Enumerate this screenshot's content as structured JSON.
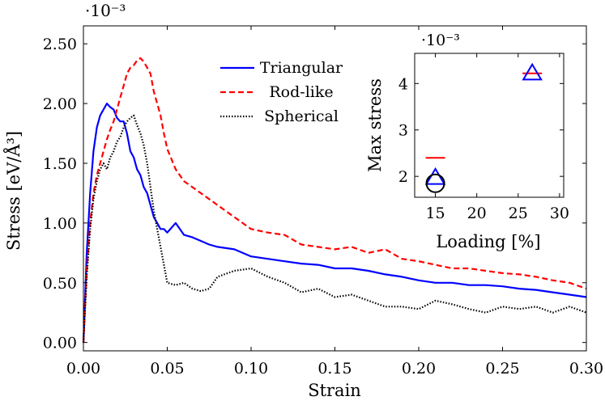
{
  "chart_data": [
    {
      "type": "line",
      "xlabel": "Strain",
      "ylabel": "Stress [eV/Å³]",
      "y_scale_label": "·10⁻³",
      "xlim": [
        0,
        0.3
      ],
      "ylim": [
        -0.07,
        2.65
      ],
      "x_ticks": [
        "0.00",
        "0.05",
        "0.10",
        "0.15",
        "0.20",
        "0.25",
        "0.30"
      ],
      "y_ticks": [
        "0.00",
        "0.50",
        "1.00",
        "1.50",
        "2.00",
        "2.50"
      ],
      "legend_position": "top-center",
      "grid": false,
      "series": [
        {
          "name": "Triangular",
          "color": "#0000ff",
          "style": "solid",
          "x": [
            0,
            0.002,
            0.004,
            0.006,
            0.008,
            0.01,
            0.012,
            0.014,
            0.016,
            0.018,
            0.02,
            0.022,
            0.024,
            0.026,
            0.028,
            0.03,
            0.032,
            0.034,
            0.036,
            0.038,
            0.04,
            0.042,
            0.044,
            0.046,
            0.048,
            0.05,
            0.055,
            0.06,
            0.065,
            0.07,
            0.075,
            0.08,
            0.09,
            0.1,
            0.11,
            0.12,
            0.13,
            0.14,
            0.15,
            0.16,
            0.17,
            0.18,
            0.19,
            0.2,
            0.21,
            0.22,
            0.23,
            0.24,
            0.25,
            0.26,
            0.27,
            0.28,
            0.29,
            0.3
          ],
          "y": [
            0.0,
            0.75,
            1.25,
            1.6,
            1.8,
            1.9,
            1.95,
            2.0,
            1.97,
            1.95,
            1.88,
            1.85,
            1.85,
            1.75,
            1.6,
            1.55,
            1.45,
            1.4,
            1.3,
            1.25,
            1.15,
            1.05,
            1.0,
            0.95,
            0.95,
            0.92,
            1.0,
            0.9,
            0.88,
            0.85,
            0.82,
            0.8,
            0.78,
            0.72,
            0.7,
            0.68,
            0.66,
            0.65,
            0.62,
            0.62,
            0.6,
            0.57,
            0.55,
            0.52,
            0.5,
            0.5,
            0.48,
            0.48,
            0.47,
            0.45,
            0.44,
            0.42,
            0.4,
            0.38
          ]
        },
        {
          "name": "Rod-like",
          "color": "#ff0000",
          "style": "dashed",
          "x": [
            0,
            0.002,
            0.004,
            0.006,
            0.008,
            0.01,
            0.012,
            0.014,
            0.016,
            0.018,
            0.02,
            0.022,
            0.024,
            0.026,
            0.028,
            0.03,
            0.032,
            0.034,
            0.036,
            0.038,
            0.04,
            0.042,
            0.044,
            0.046,
            0.048,
            0.05,
            0.055,
            0.06,
            0.065,
            0.07,
            0.075,
            0.08,
            0.09,
            0.1,
            0.11,
            0.12,
            0.13,
            0.14,
            0.15,
            0.16,
            0.17,
            0.18,
            0.19,
            0.2,
            0.21,
            0.22,
            0.23,
            0.24,
            0.25,
            0.26,
            0.27,
            0.28,
            0.29,
            0.3
          ],
          "y": [
            0.0,
            0.6,
            1.0,
            1.25,
            1.4,
            1.5,
            1.6,
            1.7,
            1.78,
            1.85,
            1.95,
            2.05,
            2.15,
            2.25,
            2.3,
            2.32,
            2.36,
            2.38,
            2.35,
            2.3,
            2.25,
            2.1,
            2.0,
            1.9,
            1.75,
            1.62,
            1.45,
            1.35,
            1.3,
            1.25,
            1.2,
            1.15,
            1.05,
            0.95,
            0.92,
            0.9,
            0.82,
            0.8,
            0.78,
            0.8,
            0.75,
            0.78,
            0.7,
            0.68,
            0.65,
            0.62,
            0.62,
            0.6,
            0.58,
            0.57,
            0.55,
            0.52,
            0.5,
            0.45
          ]
        },
        {
          "name": "Spherical",
          "color": "#000000",
          "style": "dotted",
          "x": [
            0,
            0.002,
            0.004,
            0.006,
            0.008,
            0.01,
            0.012,
            0.014,
            0.016,
            0.018,
            0.02,
            0.022,
            0.024,
            0.026,
            0.028,
            0.03,
            0.032,
            0.034,
            0.036,
            0.038,
            0.04,
            0.042,
            0.044,
            0.046,
            0.048,
            0.05,
            0.055,
            0.06,
            0.065,
            0.07,
            0.075,
            0.08,
            0.09,
            0.1,
            0.11,
            0.12,
            0.13,
            0.14,
            0.15,
            0.16,
            0.17,
            0.18,
            0.19,
            0.2,
            0.21,
            0.22,
            0.23,
            0.24,
            0.25,
            0.26,
            0.27,
            0.28,
            0.29,
            0.3
          ],
          "y": [
            0.0,
            0.55,
            0.95,
            1.2,
            1.35,
            1.45,
            1.5,
            1.45,
            1.55,
            1.6,
            1.68,
            1.72,
            1.8,
            1.85,
            1.88,
            1.9,
            1.82,
            1.75,
            1.65,
            1.5,
            1.3,
            1.1,
            0.95,
            0.8,
            0.65,
            0.5,
            0.48,
            0.5,
            0.45,
            0.43,
            0.45,
            0.55,
            0.6,
            0.62,
            0.55,
            0.5,
            0.42,
            0.45,
            0.38,
            0.4,
            0.35,
            0.3,
            0.3,
            0.28,
            0.35,
            0.32,
            0.28,
            0.25,
            0.3,
            0.28,
            0.3,
            0.25,
            0.3,
            0.25
          ]
        }
      ]
    },
    {
      "type": "scatter",
      "xlabel": "Loading [%]",
      "ylabel": "Max stress",
      "y_scale_label": "·10⁻³",
      "xlim": [
        12.5,
        30.5
      ],
      "ylim": [
        1.55,
        4.65
      ],
      "x_ticks": [
        "15",
        "20",
        "25",
        "30"
      ],
      "y_ticks": [
        "2",
        "3",
        "4"
      ],
      "series": [
        {
          "marker": "dash",
          "color": "#ff0000",
          "points": [
            [
              15,
              2.4
            ],
            [
              26.7,
              4.22
            ]
          ]
        },
        {
          "marker": "triangle",
          "color": "#0000ff",
          "points": [
            [
              15,
              1.97
            ],
            [
              26.7,
              4.22
            ]
          ]
        },
        {
          "marker": "circle",
          "color": "#000000",
          "points": [
            [
              15,
              1.85
            ]
          ]
        }
      ]
    }
  ]
}
